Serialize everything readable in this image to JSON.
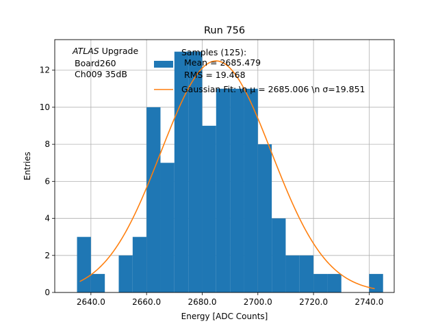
{
  "chart_data": {
    "type": "bar",
    "title": "Run 756",
    "xlabel": "Energy [ADC Counts]",
    "ylabel": "Entries",
    "xlim": [
      2627,
      2749
    ],
    "ylim": [
      0,
      13.65
    ],
    "grid": true,
    "xticks": [
      2640,
      2660,
      2680,
      2700,
      2720,
      2740
    ],
    "xtick_labels": [
      "2640.0",
      "2660.0",
      "2680.0",
      "2700.0",
      "2720.0",
      "2740.0"
    ],
    "yticks": [
      0,
      2,
      4,
      6,
      8,
      10,
      12
    ],
    "ytick_labels": [
      "0",
      "2",
      "4",
      "6",
      "8",
      "10",
      "12"
    ],
    "annotation": {
      "atlas": "ATLAS",
      "upgrade": " Upgrade",
      "line2": "Board260",
      "line3": "Ch009 35dB"
    },
    "histogram": {
      "name_lines": [
        "Samples (125):",
        "Mean = 2685.479",
        "RMS = 19.468"
      ],
      "color": "#1f77b4",
      "bin_edges": [
        2635,
        2640,
        2645,
        2650,
        2655,
        2660,
        2665,
        2670,
        2675,
        2680,
        2685,
        2690,
        2695,
        2700,
        2705,
        2710,
        2715,
        2720,
        2725,
        2730,
        2735,
        2740,
        2745
      ],
      "counts": [
        3,
        1,
        0,
        2,
        3,
        10,
        7,
        13,
        13,
        9,
        11,
        11,
        11,
        8,
        4,
        2,
        2,
        1,
        1,
        0,
        0,
        1
      ]
    },
    "fit": {
      "name": "Gaussian Fit: \\n μ = 2685.006 \\n σ=19.851",
      "color": "#ff7f0e",
      "mu": 2685.006,
      "sigma": 19.851,
      "amplitude": 12.5,
      "x_range": [
        2636,
        2742
      ]
    },
    "legend_placement": "top-center"
  }
}
